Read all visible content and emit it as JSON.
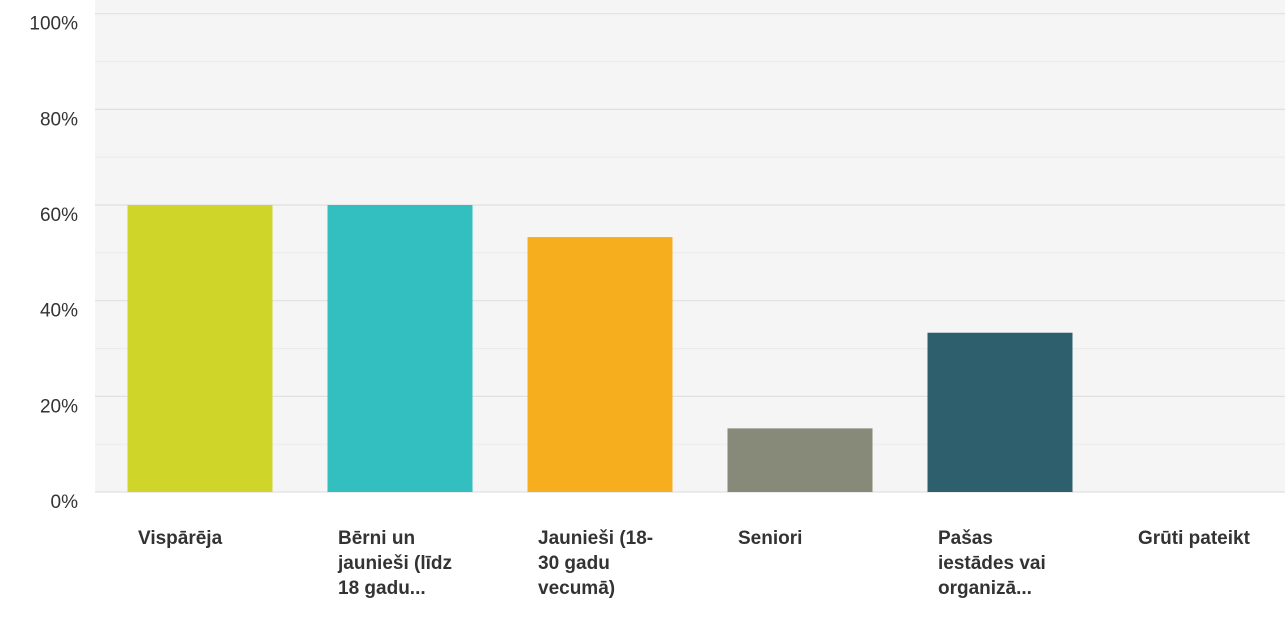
{
  "chart_data": {
    "type": "bar",
    "categories": [
      "Vispārēja",
      "Bērni un jaunieši (līdz 18 gadu...",
      "Jaunieši (18-30 gadu vecumā)",
      "Seniori",
      "Pašas iestādes vai organizā...",
      "Grūti pateikt"
    ],
    "values": [
      60,
      60,
      53.3,
      13.3,
      33.3,
      0
    ],
    "colors": [
      "#d0d52a",
      "#33bec0",
      "#f6ae1f",
      "#878a78",
      "#2e5f6d",
      "#6cb3d8"
    ],
    "ylim": [
      0,
      100
    ],
    "yticks": [
      {
        "value": 0,
        "label": "0%"
      },
      {
        "value": 20,
        "label": "20%"
      },
      {
        "value": 40,
        "label": "40%"
      },
      {
        "value": 60,
        "label": "60%"
      },
      {
        "value": 80,
        "label": "80%"
      },
      {
        "value": 100,
        "label": "100%"
      }
    ],
    "minor_yticks": [
      10,
      30,
      50,
      70,
      90
    ],
    "grid": true
  }
}
